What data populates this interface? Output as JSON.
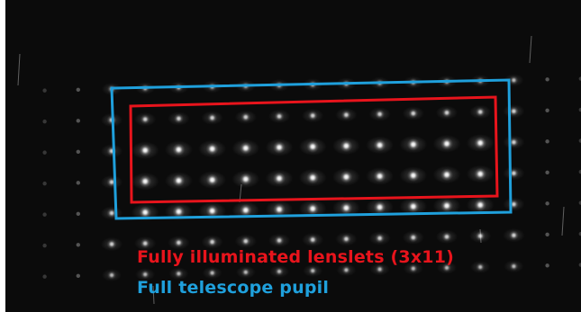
{
  "image": {
    "background_color": "#0b0b0b",
    "edge_color": "#ffffff",
    "spot_color": "#ffffff",
    "spot_grid": {
      "rows": 7,
      "columns": 13,
      "fully_illuminated_rows": 3,
      "fully_illuminated_columns": 11
    }
  },
  "annotations": {
    "fully_illuminated": {
      "label": "Fully illuminated lenslets (3x11)",
      "color": "#e8141c"
    },
    "full_pupil": {
      "label": "Full telescope pupil",
      "color": "#1fa0dc"
    }
  }
}
